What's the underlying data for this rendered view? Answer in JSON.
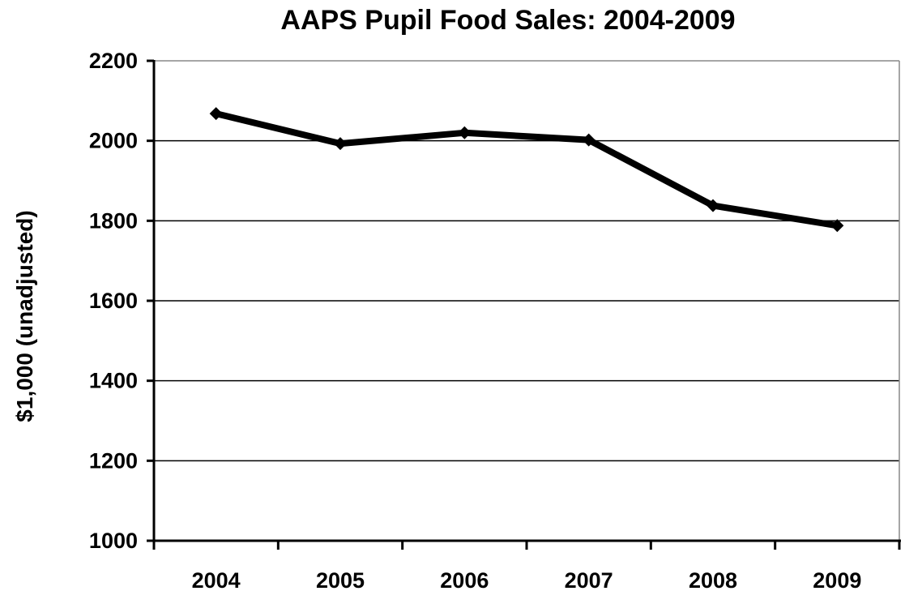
{
  "chart_data": {
    "type": "line",
    "title": "AAPS Pupil Food Sales: 2004-2009",
    "xlabel": "",
    "ylabel": "$1,000 (unadjusted)",
    "categories": [
      "2004",
      "2005",
      "2006",
      "2007",
      "2008",
      "2009"
    ],
    "series": [
      {
        "values": [
          2068,
          1993,
          2020,
          2002,
          1838,
          1788
        ]
      }
    ],
    "ylim": [
      1000,
      2200
    ],
    "yticks": [
      1000,
      1200,
      1400,
      1600,
      1800,
      2000,
      2200
    ],
    "grid": true,
    "line_color": "#000000"
  }
}
